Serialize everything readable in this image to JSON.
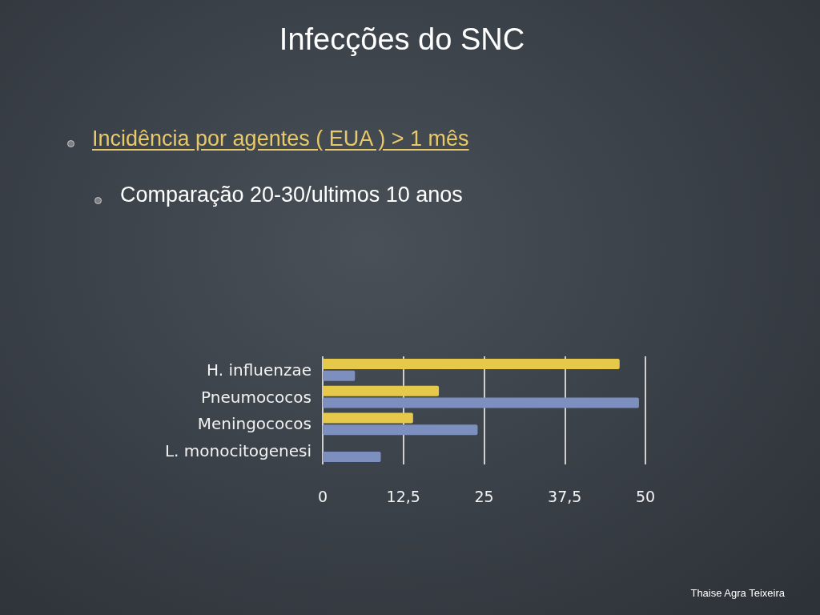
{
  "chart_data": {
    "type": "bar",
    "orientation": "horizontal",
    "title": "Infecções do SNC",
    "subtitle": "Incidência por agentes ( EUA ) > 1 mês",
    "annotations": [
      "Comparação 20-30/ultimos 10 anos",
      "Thaise Agra Teixeira"
    ],
    "categories": [
      "H. influenzae",
      "Pneumococos",
      "Meningococos",
      "L. monocitogenesi"
    ],
    "series": [
      {
        "color": "#e6c94b",
        "values": [
          46,
          18,
          14,
          null
        ]
      },
      {
        "color": "#7c8fbf",
        "values": [
          5,
          49,
          24,
          9
        ]
      }
    ],
    "xlim": [
      0,
      50
    ],
    "xticks": [
      0,
      {
        "value": 12.5,
        "label": "12,5"
      },
      25,
      {
        "value": 37.5,
        "label": "37,5"
      },
      50
    ],
    "grid": "x"
  }
}
